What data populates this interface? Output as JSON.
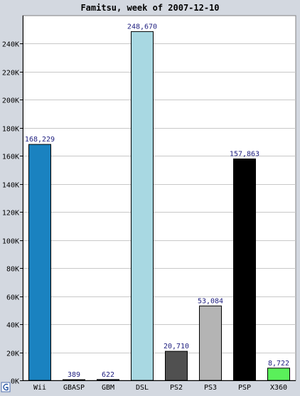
{
  "chart_data": {
    "type": "bar",
    "title": "Famitsu, week of 2007-12-10",
    "xlabel": "",
    "ylabel": "",
    "ylim": [
      0,
      260000
    ],
    "yticks": [
      0,
      20000,
      40000,
      60000,
      80000,
      100000,
      120000,
      140000,
      160000,
      180000,
      200000,
      220000,
      240000
    ],
    "ytick_labels": [
      "0K",
      "20K",
      "40K",
      "60K",
      "80K",
      "100K",
      "120K",
      "140K",
      "160K",
      "180K",
      "200K",
      "220K",
      "240K"
    ],
    "grid": true,
    "categories": [
      "Wii",
      "GBASP",
      "GBM",
      "DSL",
      "PS2",
      "PS3",
      "PSP",
      "X360"
    ],
    "values": [
      168229,
      389,
      622,
      248670,
      20710,
      53084,
      157863,
      8722
    ],
    "value_labels": [
      "168,229",
      "389",
      "622",
      "248,670",
      "20,710",
      "53,084",
      "157,863",
      "8,722"
    ],
    "colors": [
      "#1a82c0",
      "#2a4f8f",
      "#2a4f8f",
      "#a8d8e2",
      "#505050",
      "#b4b4b4",
      "#000000",
      "#5af05a"
    ],
    "colors_meta": {
      "background": "#d3d8e0",
      "plot_background": "#ffffff",
      "grid": "#c8c8c8",
      "value_label": "#202080",
      "text": "#000000"
    }
  }
}
